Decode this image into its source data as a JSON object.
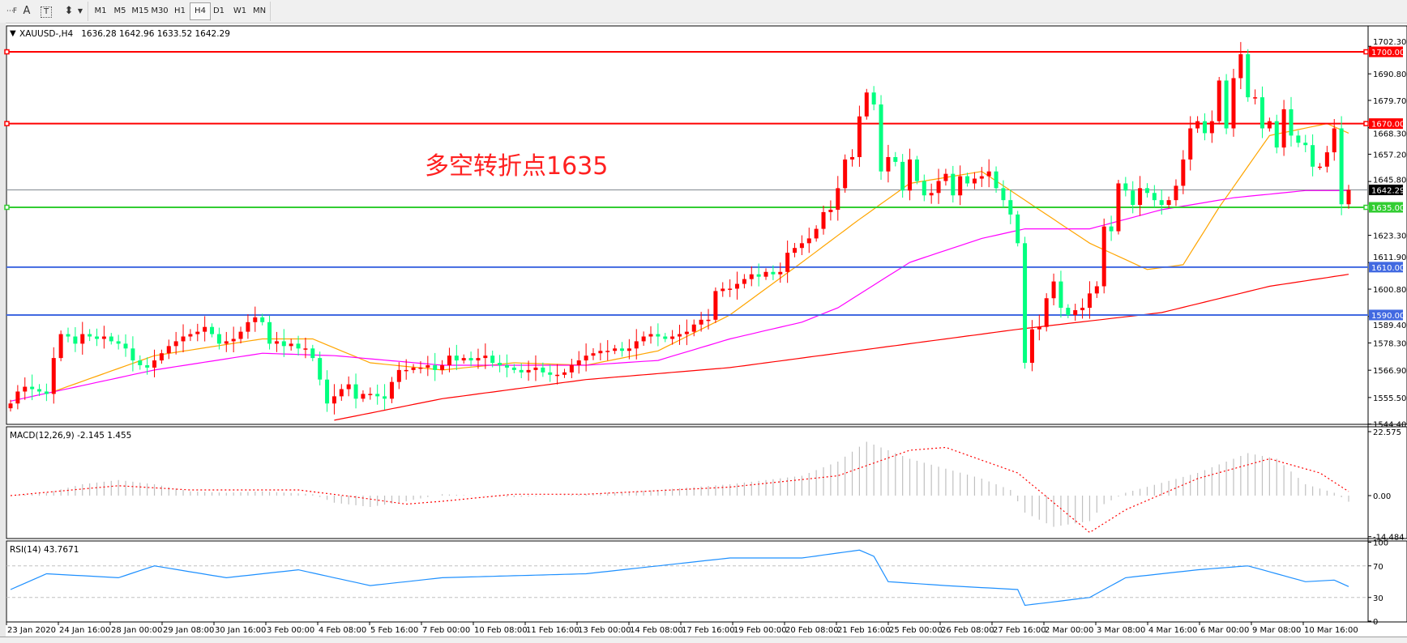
{
  "toolbar": {
    "icons": [
      "period-separator-icon",
      "text-icon",
      "text-label-icon",
      "arrows-icon"
    ],
    "timeframes": [
      "M1",
      "M5",
      "M15",
      "M30",
      "H1",
      "H4",
      "D1",
      "W1",
      "MN"
    ],
    "active_timeframe": "H4"
  },
  "chart_header": {
    "symbol": "XAUUSD-,H4",
    "ohlc": "1636.28 1642.96 1633.52 1642.29"
  },
  "annotation": "多空转折点1635",
  "colors": {
    "bull_candle": "#ff0000",
    "bear_candle": "#00ff7f",
    "ma_fast": "#ffa500",
    "ma_mid": "#ff00ff",
    "ma_slow": "#ff0000",
    "resistance": "#ff0000",
    "pivot": "#32cd32",
    "support": "#4169e1",
    "rsi": "#1e90ff",
    "macd_hist": "#c0c0c0",
    "macd_signal": "#ff0000",
    "price_line": "#808890"
  },
  "chart_data": [
    {
      "type": "candlestick",
      "title": "XAUUSD-,H4",
      "ylim": [
        1544.4,
        1702.3
      ],
      "y_ticks": [
        "1702.30",
        "1690.80",
        "1679.70",
        "1668.30",
        "1657.20",
        "1645.80",
        "1623.30",
        "1611.90",
        "1600.80",
        "1589.40",
        "1578.30",
        "1566.90",
        "1555.50",
        "1544.40"
      ],
      "x_ticks": [
        "23 Jan 2020",
        "24 Jan 16:00",
        "28 Jan 00:00",
        "29 Jan 08:00",
        "30 Jan 16:00",
        "3 Feb 00:00",
        "4 Feb 08:00",
        "5 Feb 16:00",
        "7 Feb 00:00",
        "10 Feb 08:00",
        "11 Feb 16:00",
        "13 Feb 00:00",
        "14 Feb 08:00",
        "17 Feb 16:00",
        "19 Feb 00:00",
        "20 Feb 08:00",
        "21 Feb 16:00",
        "25 Feb 00:00",
        "26 Feb 08:00",
        "27 Feb 16:00",
        "2 Mar 00:00",
        "3 Mar 08:00",
        "4 Mar 16:00",
        "6 Mar 00:00",
        "9 Mar 08:00",
        "10 Mar 16:00"
      ],
      "first_open": 1551,
      "close": [
        1553,
        1558,
        1560,
        1559,
        1558,
        1557,
        1572,
        1582,
        1581,
        1578,
        1582,
        1581,
        1580,
        1581,
        1579,
        1578,
        1576,
        1571,
        1569,
        1568,
        1571,
        1574,
        1577,
        1579,
        1581,
        1582,
        1583,
        1585,
        1582,
        1578,
        1579,
        1580,
        1583,
        1587,
        1589,
        1587,
        1578,
        1579,
        1577,
        1578,
        1576,
        1576,
        1572,
        1563,
        1553,
        1556,
        1559,
        1561,
        1555,
        1557,
        1557,
        1556,
        1555,
        1562,
        1567,
        1567,
        1568,
        1568,
        1569,
        1567,
        1569,
        1573,
        1571,
        1572,
        1571,
        1572,
        1573,
        1570,
        1569,
        1568,
        1567,
        1566,
        1567,
        1568,
        1566,
        1565,
        1565,
        1566,
        1569,
        1571,
        1573,
        1574,
        1575,
        1575,
        1576,
        1575,
        1576,
        1579,
        1581,
        1582,
        1581,
        1580,
        1581,
        1582,
        1583,
        1586,
        1588,
        1588,
        1600,
        1601,
        1601,
        1603,
        1605,
        1607,
        1606,
        1608,
        1607,
        1608,
        1616,
        1618,
        1620,
        1622,
        1626,
        1633,
        1634,
        1643,
        1655,
        1656,
        1673,
        1683,
        1678,
        1650,
        1656,
        1654,
        1642,
        1655,
        1646,
        1640,
        1641,
        1646,
        1649,
        1640,
        1648,
        1645,
        1647,
        1648,
        1650,
        1643,
        1638,
        1632,
        1620,
        1570,
        1584,
        1585,
        1597,
        1604,
        1593,
        1590,
        1592,
        1593,
        1599,
        1602,
        1627,
        1625,
        1645,
        1642,
        1636,
        1643,
        1641,
        1638,
        1636,
        1638,
        1644,
        1655,
        1668,
        1671,
        1666,
        1671,
        1688,
        1668,
        1689,
        1699,
        1681,
        1681,
        1668,
        1671,
        1660,
        1676,
        1665,
        1662,
        1661,
        1652,
        1652,
        1658,
        1668,
        1636.28,
        1642.29
      ],
      "current_price": "1642.29",
      "horizontal_levels": [
        {
          "price": 1700,
          "label": "1700.00",
          "role": "resistance"
        },
        {
          "price": 1670,
          "label": "1670.00",
          "role": "resistance"
        },
        {
          "price": 1635,
          "label": "1635.00",
          "role": "pivot"
        },
        {
          "price": 1610,
          "label": "1610.00",
          "role": "support"
        },
        {
          "price": 1590,
          "label": "1590.00",
          "role": "support"
        }
      ],
      "moving_averages": {
        "fast": [
          [
            6,
            1558
          ],
          [
            20,
            1573
          ],
          [
            35,
            1580
          ],
          [
            42,
            1580
          ],
          [
            50,
            1570
          ],
          [
            60,
            1567
          ],
          [
            70,
            1570
          ],
          [
            80,
            1569
          ],
          [
            90,
            1575
          ],
          [
            100,
            1590
          ],
          [
            110,
            1612
          ],
          [
            118,
            1630
          ],
          [
            125,
            1645
          ],
          [
            135,
            1650
          ],
          [
            140,
            1640
          ],
          [
            150,
            1620
          ],
          [
            158,
            1609
          ],
          [
            163,
            1611
          ],
          [
            168,
            1635
          ],
          [
            175,
            1665
          ],
          [
            183,
            1670
          ],
          [
            186,
            1666
          ]
        ],
        "mid": [
          [
            0,
            1554
          ],
          [
            20,
            1567
          ],
          [
            35,
            1574
          ],
          [
            45,
            1573
          ],
          [
            60,
            1569
          ],
          [
            80,
            1569
          ],
          [
            90,
            1571
          ],
          [
            100,
            1580
          ],
          [
            110,
            1587
          ],
          [
            115,
            1593
          ],
          [
            125,
            1612
          ],
          [
            135,
            1622
          ],
          [
            141,
            1626
          ],
          [
            150,
            1626
          ],
          [
            160,
            1634
          ],
          [
            170,
            1639
          ],
          [
            180,
            1642
          ],
          [
            186,
            1642
          ]
        ],
        "slow": [
          [
            45,
            1546
          ],
          [
            60,
            1555
          ],
          [
            80,
            1563
          ],
          [
            100,
            1568
          ],
          [
            120,
            1576
          ],
          [
            140,
            1584
          ],
          [
            160,
            1591
          ],
          [
            175,
            1602
          ],
          [
            186,
            1607
          ]
        ]
      }
    },
    {
      "type": "bar",
      "title": "MACD(12,26,9) -2.145 1.455",
      "ylim": [
        -14.484,
        22.575
      ],
      "y_ticks": [
        "22.575",
        "0.00",
        "-14.484"
      ],
      "histogram": [
        [
          0,
          0
        ],
        [
          5,
          1
        ],
        [
          10,
          4
        ],
        [
          15,
          5.5
        ],
        [
          20,
          4
        ],
        [
          25,
          1.5
        ],
        [
          30,
          1
        ],
        [
          35,
          1.5
        ],
        [
          42,
          0.5
        ],
        [
          45,
          -2.5
        ],
        [
          50,
          -4
        ],
        [
          55,
          -2
        ],
        [
          60,
          0.5
        ],
        [
          70,
          -0.5
        ],
        [
          80,
          0.5
        ],
        [
          90,
          2
        ],
        [
          100,
          4
        ],
        [
          110,
          7
        ],
        [
          115,
          12
        ],
        [
          119,
          19
        ],
        [
          121,
          17
        ],
        [
          125,
          13
        ],
        [
          135,
          6
        ],
        [
          139,
          2
        ],
        [
          141,
          -6
        ],
        [
          145,
          -11
        ],
        [
          150,
          -9
        ],
        [
          152,
          -3
        ],
        [
          155,
          1
        ],
        [
          165,
          8
        ],
        [
          172,
          15
        ],
        [
          176,
          13
        ],
        [
          180,
          4
        ],
        [
          184,
          1
        ],
        [
          186,
          -2.145
        ]
      ],
      "signal": [
        [
          0,
          0
        ],
        [
          15,
          3.5
        ],
        [
          25,
          2
        ],
        [
          40,
          2
        ],
        [
          48,
          -0.5
        ],
        [
          55,
          -3
        ],
        [
          60,
          -2
        ],
        [
          70,
          0.5
        ],
        [
          80,
          0.5
        ],
        [
          100,
          3
        ],
        [
          115,
          7
        ],
        [
          125,
          16
        ],
        [
          130,
          17
        ],
        [
          140,
          8
        ],
        [
          150,
          -13
        ],
        [
          155,
          -5
        ],
        [
          165,
          6
        ],
        [
          175,
          13
        ],
        [
          182,
          8
        ],
        [
          186,
          1.455
        ]
      ]
    },
    {
      "type": "line",
      "title": "RSI(14) 43.7671",
      "ylim": [
        0,
        100
      ],
      "y_ticks": [
        "100",
        "70",
        "30",
        "0"
      ],
      "levels": [
        70,
        30
      ],
      "values": [
        [
          0,
          40
        ],
        [
          5,
          60
        ],
        [
          15,
          55
        ],
        [
          20,
          70
        ],
        [
          30,
          55
        ],
        [
          40,
          65
        ],
        [
          50,
          45
        ],
        [
          60,
          55
        ],
        [
          80,
          60
        ],
        [
          100,
          80
        ],
        [
          110,
          80
        ],
        [
          118,
          90
        ],
        [
          120,
          82
        ],
        [
          122,
          50
        ],
        [
          130,
          45
        ],
        [
          140,
          40
        ],
        [
          141,
          20
        ],
        [
          150,
          30
        ],
        [
          155,
          55
        ],
        [
          165,
          65
        ],
        [
          172,
          70
        ],
        [
          180,
          50
        ],
        [
          184,
          52
        ],
        [
          186,
          43.7671
        ]
      ]
    }
  ]
}
